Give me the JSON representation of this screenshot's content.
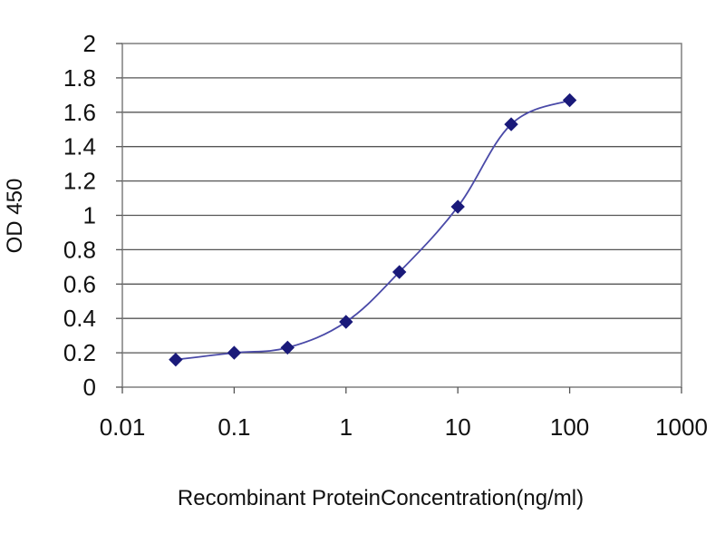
{
  "chart_data": {
    "type": "line",
    "title": "",
    "xlabel": "Recombinant  ProteinConcentration(ng/ml)",
    "ylabel": "OD 450",
    "x_scale": "log",
    "xlim": [
      0.01,
      1000
    ],
    "ylim": [
      0,
      2
    ],
    "x_ticks": [
      0.01,
      0.1,
      1,
      10,
      100,
      1000
    ],
    "x_tick_labels": [
      "0.01",
      "0.1",
      "1",
      "10",
      "100",
      "1000"
    ],
    "y_ticks": [
      0,
      0.2,
      0.4,
      0.6,
      0.8,
      1,
      1.2,
      1.4,
      1.6,
      1.8,
      2
    ],
    "y_tick_labels": [
      "0",
      "0.2",
      "0.4",
      "0.6",
      "0.8",
      "1",
      "1.2",
      "1.4",
      "1.6",
      "1.8",
      "2"
    ],
    "grid": "horizontal",
    "legend": "none",
    "series": [
      {
        "color": "#1a1a7a",
        "marker": "diamond",
        "x": [
          0.03,
          0.1,
          0.3,
          1,
          3,
          10,
          30,
          100
        ],
        "y": [
          0.16,
          0.2,
          0.23,
          0.38,
          0.67,
          1.05,
          1.53,
          1.67
        ]
      }
    ]
  }
}
